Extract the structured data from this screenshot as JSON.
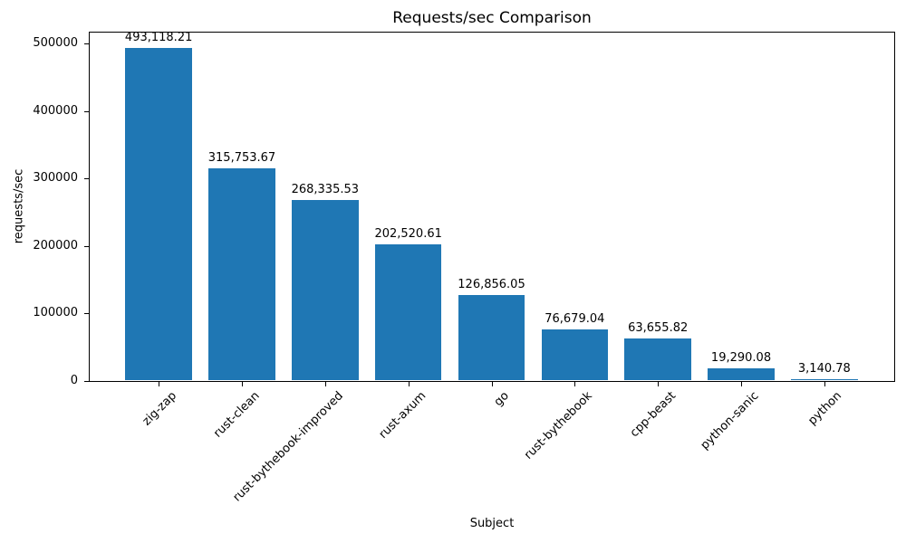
{
  "chart_data": {
    "type": "bar",
    "title": "Requests/sec Comparison",
    "xlabel": "Subject",
    "ylabel": "requests/sec",
    "categories": [
      "zig-zap",
      "rust-clean",
      "rust-bythebook-improved",
      "rust-axum",
      "go",
      "rust-bythebook",
      "cpp-beast",
      "python-sanic",
      "python"
    ],
    "values": [
      493118.21,
      315753.67,
      268335.53,
      202520.61,
      126856.05,
      76679.04,
      63655.82,
      19290.08,
      3140.78
    ],
    "value_labels": [
      "493,118.21",
      "315,753.67",
      "268,335.53",
      "202,520.61",
      "126,856.05",
      "76,679.04",
      "63,655.82",
      "19,290.08",
      "3,140.78"
    ],
    "yticks": [
      0,
      100000,
      200000,
      300000,
      400000,
      500000
    ],
    "ytick_labels": [
      "0",
      "100000",
      "200000",
      "300000",
      "400000",
      "500000"
    ],
    "ylim": [
      0,
      517774
    ],
    "bar_color": "#1f77b4",
    "text_color": "#000000",
    "grid": false,
    "legend": null,
    "xtick_rotation_deg": 45
  }
}
